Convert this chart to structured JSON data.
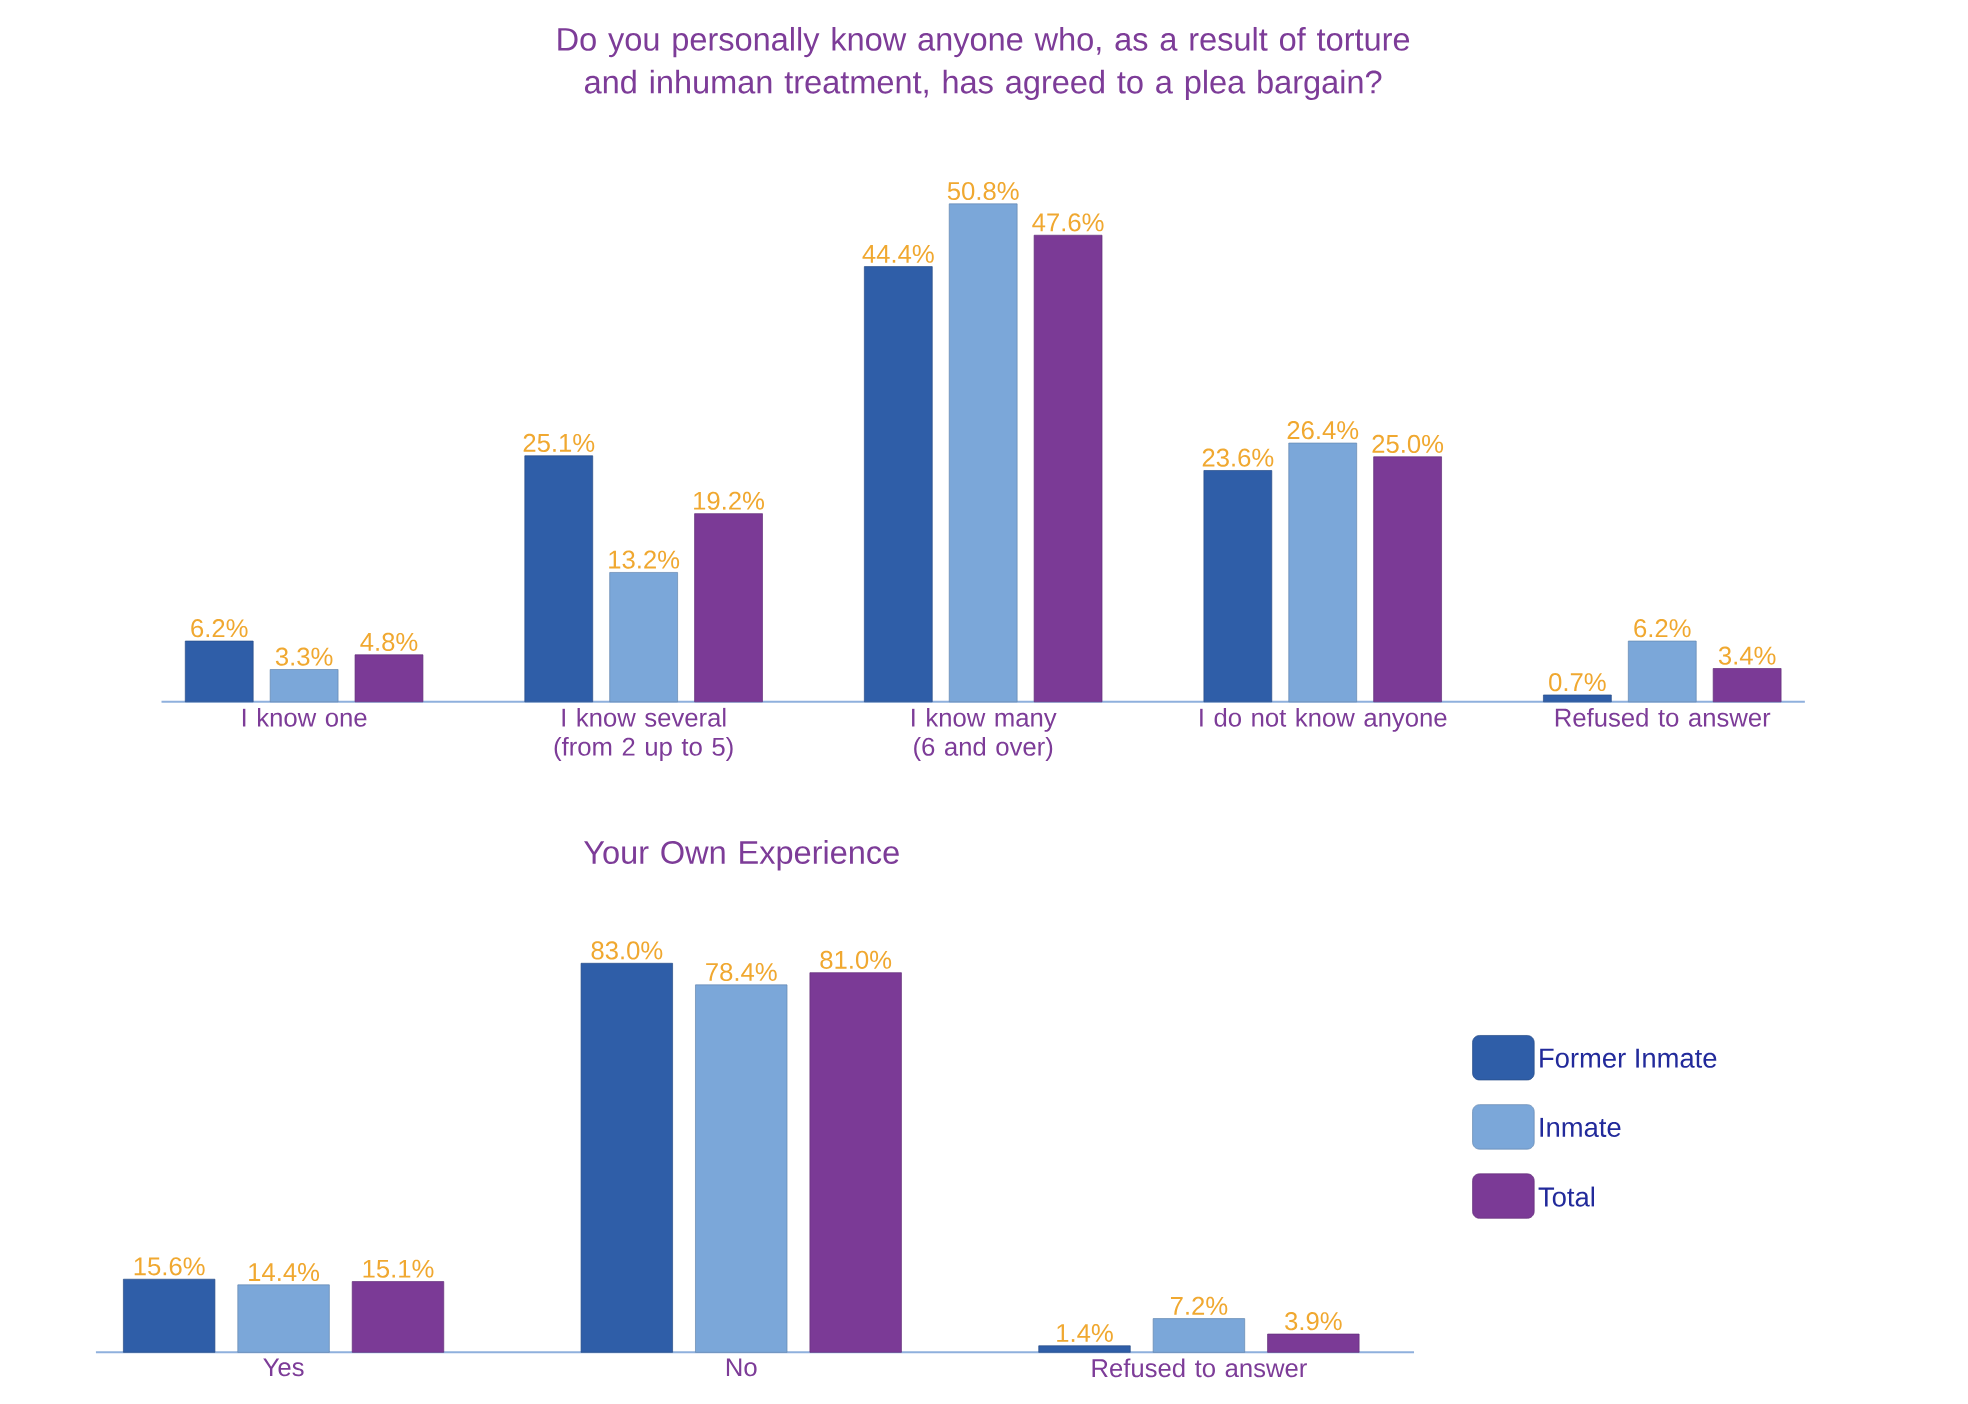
{
  "chart_data": [
    {
      "type": "bar",
      "title": "Do you personally know anyone who, as a result of torture and inhuman treatment, has agreed to a plea bargain?",
      "categories": [
        "I know one",
        "I know several (from 2 up to 5)",
        "I know many (6 and over)",
        "I do not know anyone",
        "Refused to answer"
      ],
      "legend": false,
      "series": [
        {
          "color": "#2f5ea8",
          "values": [
            6.2,
            25.1,
            44.4,
            23.6,
            0.7
          ],
          "value_labels": [
            "6.2%",
            "25.1%",
            "44.4%",
            "23.6%",
            "0.7%"
          ]
        },
        {
          "color": "#7ba7d9",
          "values": [
            3.3,
            13.2,
            50.8,
            26.4,
            6.2
          ],
          "value_labels": [
            "3.3%",
            "13.2%",
            "50.8%",
            "26.4%",
            "6.2%"
          ]
        },
        {
          "color": "#7b3a96",
          "values": [
            4.8,
            19.2,
            47.6,
            25.0,
            3.4
          ],
          "value_labels": [
            "4.8%",
            "19.2%",
            "47.6%",
            "25.0%",
            "3.4%"
          ]
        }
      ]
    },
    {
      "type": "bar",
      "title": "Your Own Experience",
      "categories": [
        "Yes",
        "No",
        "Refused to answer"
      ],
      "legend": "right",
      "series": [
        {
          "name": "Former Inmate",
          "color": "#2f5ea8",
          "values": [
            15.6,
            83.0,
            1.4
          ],
          "value_labels": [
            "15.6%",
            "83.0%",
            "1.4%"
          ]
        },
        {
          "name": "Inmate",
          "color": "#7ba7d9",
          "values": [
            14.4,
            78.4,
            7.2
          ],
          "value_labels": [
            "14.4%",
            "78.4%",
            "7.2%"
          ]
        },
        {
          "name": "Total",
          "color": "#7b3a96",
          "values": [
            15.1,
            81.0,
            3.9
          ],
          "value_labels": [
            "15.1%",
            "81.0%",
            "3.9%"
          ]
        }
      ]
    }
  ]
}
